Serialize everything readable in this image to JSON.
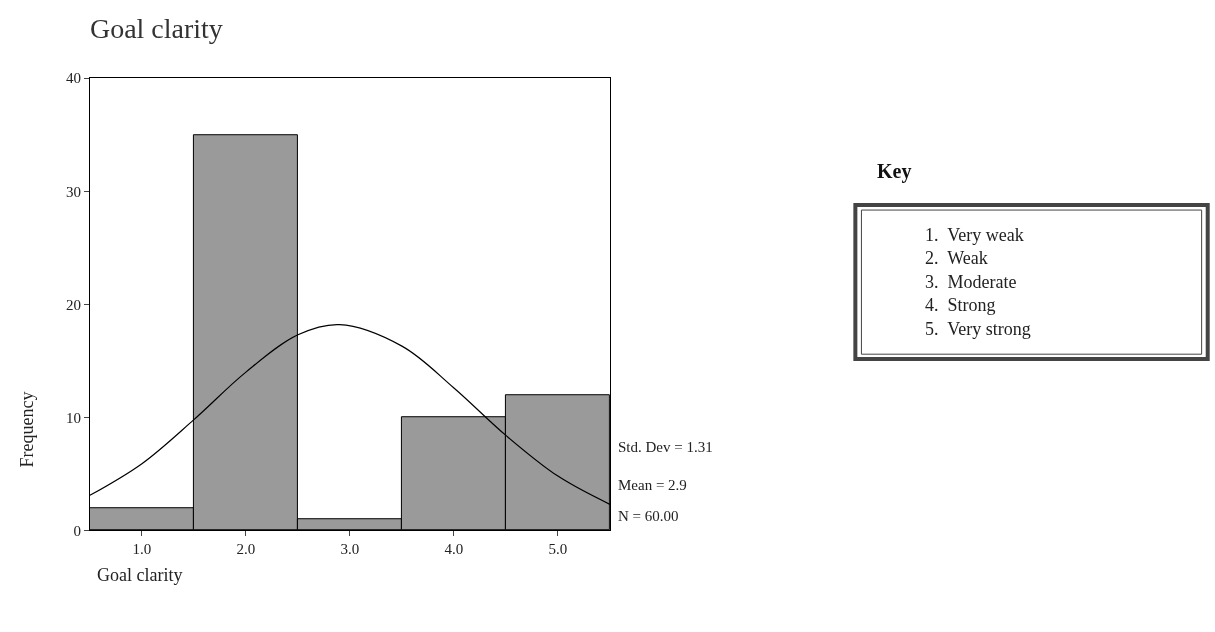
{
  "chart_data": {
    "type": "histogram",
    "title": "Goal clarity",
    "xlabel": "Goal clarity",
    "ylabel": "Frequency",
    "bins": [
      0.5,
      1.5,
      2.5,
      3.5,
      4.5,
      5.5
    ],
    "values": [
      2,
      35,
      1,
      10,
      12
    ],
    "color": "#9a9a9a",
    "series": [
      {
        "type": "line",
        "color": "#000000",
        "x": [
          0.5,
          1.0,
          1.5,
          2.0,
          2.5,
          2.9,
          3.5,
          4.0,
          4.5,
          5.0,
          5.5
        ],
        "values": [
          3.1,
          5.9,
          9.8,
          14,
          17.3,
          18.2,
          16.3,
          12.6,
          8.4,
          4.8,
          2.3
        ]
      }
    ],
    "xlim": [
      0.5,
      5.5
    ],
    "xticks": [
      {
        "value": 1,
        "label": "1.0"
      },
      {
        "value": 2,
        "label": "2.0"
      },
      {
        "value": 3,
        "label": "3.0"
      },
      {
        "value": 4,
        "label": "4.0"
      },
      {
        "value": 5,
        "label": "5.0"
      }
    ],
    "ylim": [
      0,
      40
    ],
    "yticks": [
      0,
      10,
      20,
      30,
      40
    ],
    "annotations": [
      "Std. Dev = 1.31",
      "Mean = 2.9",
      "N = 60.00",
      "Key",
      "1.  Very weak\n2.  Weak\n3.  Moderate\n4.  Strong\n5.  Very strong"
    ]
  }
}
